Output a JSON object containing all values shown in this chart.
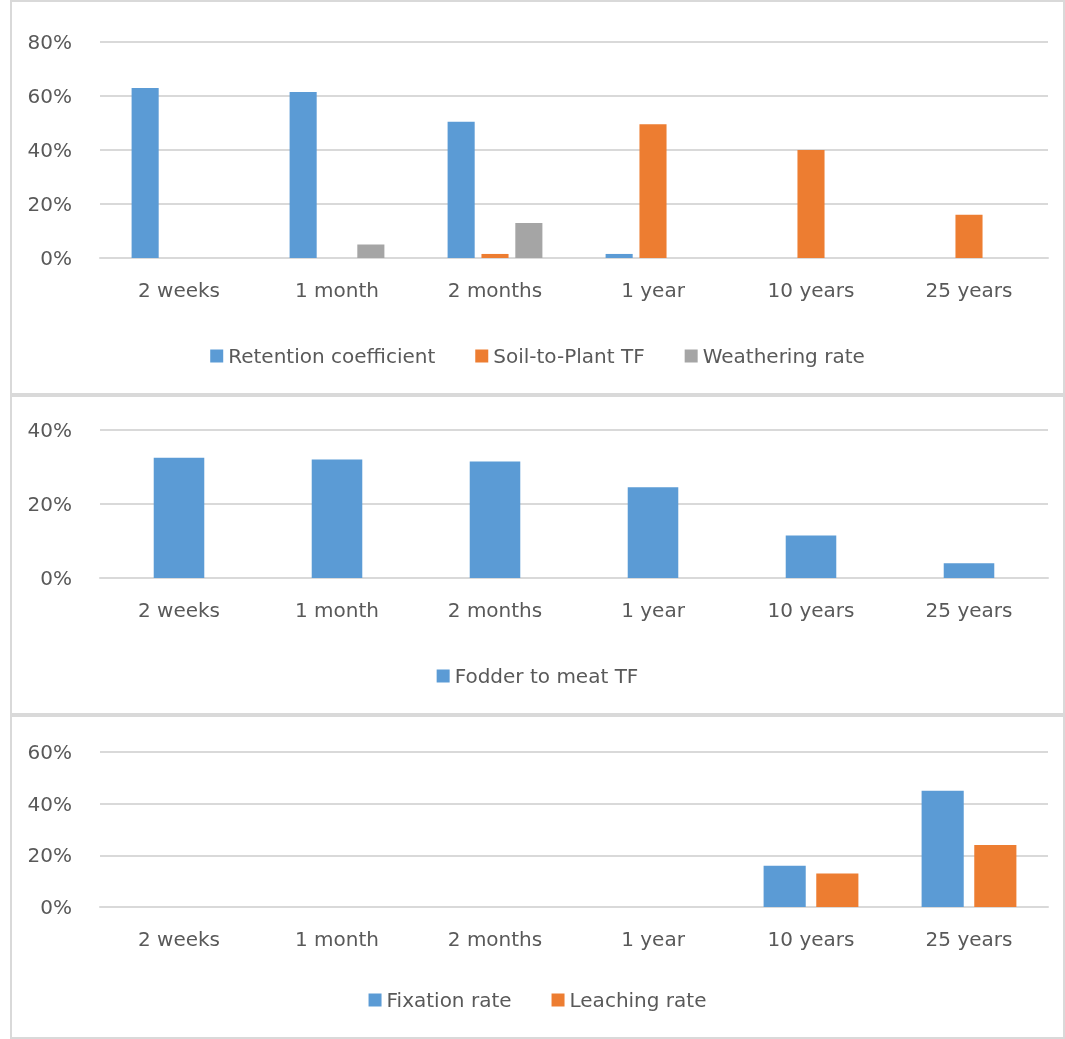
{
  "chart_data": [
    {
      "type": "bar",
      "categories": [
        "2 weeks",
        "1 month",
        "2 months",
        "1 year",
        "10 years",
        "25 years"
      ],
      "series": [
        {
          "name": "Retention coefficient",
          "color": "#5b9bd5",
          "values": [
            63,
            61.5,
            50.5,
            1.5,
            null,
            null
          ]
        },
        {
          "name": "Soil-to-Plant TF",
          "color": "#ed7d31",
          "values": [
            null,
            null,
            1.5,
            49.5,
            40,
            16
          ]
        },
        {
          "name": "Weathering rate",
          "color": "#a5a5a5",
          "values": [
            null,
            5,
            13,
            null,
            null,
            null
          ]
        }
      ],
      "ylim": [
        0,
        80
      ],
      "yticks": [
        {
          "value": 0,
          "label": "0%"
        },
        {
          "value": 20,
          "label": "20%"
        },
        {
          "value": 40,
          "label": "40%"
        },
        {
          "value": 60,
          "label": "60%"
        },
        {
          "value": 80,
          "label": "80%"
        }
      ],
      "grid": "y",
      "legend": "bottom"
    },
    {
      "type": "bar",
      "categories": [
        "2 weeks",
        "1 month",
        "2 months",
        "1 year",
        "10 years",
        "25 years"
      ],
      "series": [
        {
          "name": "Fodder to meat TF",
          "color": "#5b9bd5",
          "values": [
            32.5,
            32,
            31.5,
            24.5,
            11.5,
            4
          ]
        }
      ],
      "ylim": [
        0,
        40
      ],
      "yticks": [
        {
          "value": 0,
          "label": "0%"
        },
        {
          "value": 20,
          "label": "20%"
        },
        {
          "value": 40,
          "label": "40%"
        }
      ],
      "grid": "y",
      "legend": "bottom"
    },
    {
      "type": "bar",
      "categories": [
        "2 weeks",
        "1 month",
        "2 months",
        "1 year",
        "10 years",
        "25 years"
      ],
      "series": [
        {
          "name": "Fixation rate",
          "color": "#5b9bd5",
          "values": [
            null,
            null,
            null,
            null,
            16,
            45
          ]
        },
        {
          "name": "Leaching rate",
          "color": "#ed7d31",
          "values": [
            null,
            null,
            null,
            null,
            13,
            24
          ]
        }
      ],
      "ylim": [
        0,
        60
      ],
      "yticks": [
        {
          "value": 0,
          "label": "0%"
        },
        {
          "value": 20,
          "label": "20%"
        },
        {
          "value": 40,
          "label": "40%"
        },
        {
          "value": 60,
          "label": "60%"
        }
      ],
      "grid": "y",
      "legend": "bottom"
    }
  ]
}
